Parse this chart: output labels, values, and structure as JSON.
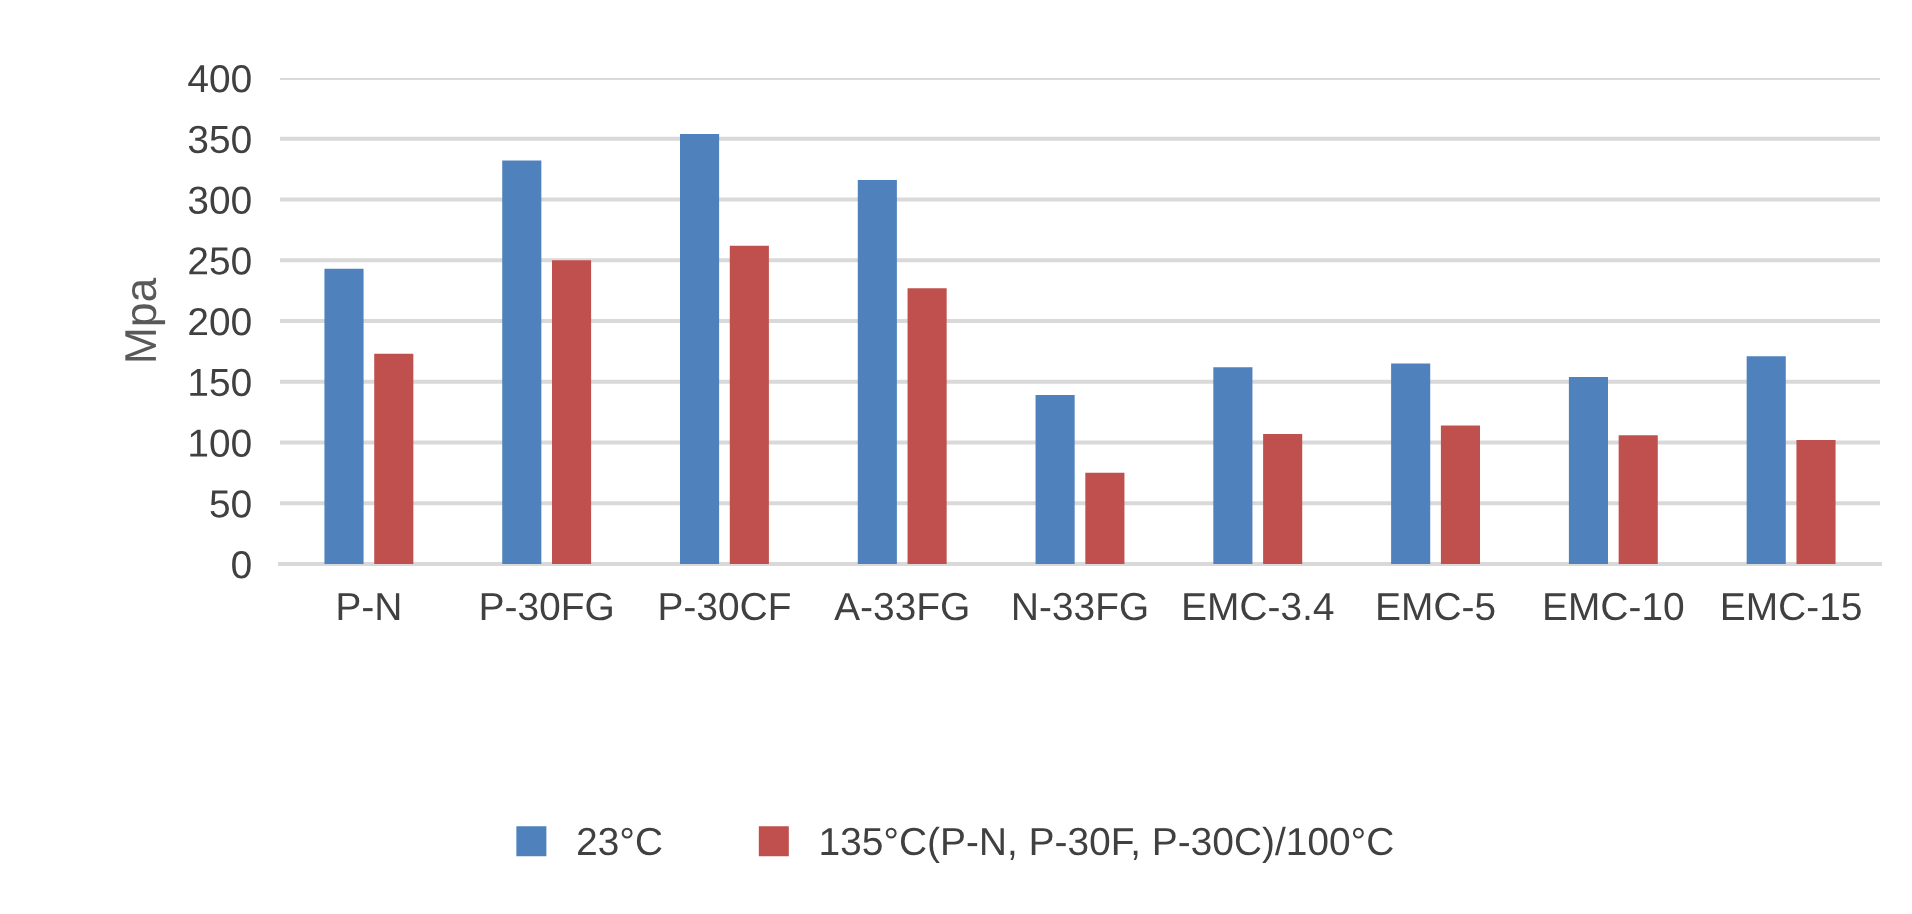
{
  "chart_data": {
    "type": "bar",
    "ylabel": "Mpa",
    "categories": [
      "P-N",
      "P-30FG",
      "P-30CF",
      "A-33FG",
      "N-33FG",
      "EMC-3.4",
      "EMC-5",
      "EMC-10",
      "EMC-15"
    ],
    "series": [
      {
        "name": "23°C",
        "color": "#4f81bd",
        "values": [
          243,
          332,
          354,
          316,
          139,
          162,
          165,
          154,
          171
        ]
      },
      {
        "name": "135°C(P-N, P-30F, P-30C)/100°C",
        "color": "#c0504d",
        "values": [
          173,
          250,
          262,
          227,
          75,
          107,
          114,
          106,
          102
        ]
      }
    ],
    "ylim": [
      0,
      400
    ],
    "yticks": [
      0,
      50,
      100,
      150,
      200,
      250,
      300,
      350,
      400
    ],
    "grid": "y",
    "legend": "bottom"
  }
}
